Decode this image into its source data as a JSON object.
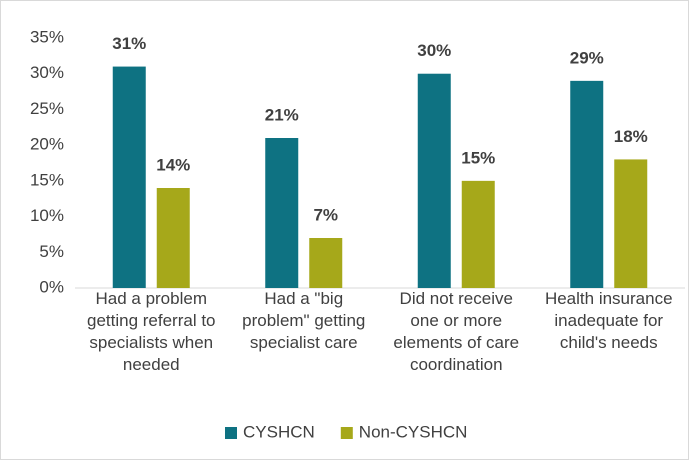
{
  "chart_data": {
    "type": "bar",
    "categories": [
      "Had a problem\ngetting referral to\nspecialists when\nneeded",
      "Had a \"big\nproblem\" getting\nspecialist care",
      "Did not receive\none or more\nelements of care\ncoordination",
      "Health insurance\ninadequate for\nchild's needs"
    ],
    "series": [
      {
        "name": "CYSHCN",
        "color": "#0e7282",
        "values": [
          31,
          21,
          30,
          29
        ],
        "value_labels": [
          "31%",
          "21%",
          "30%",
          "29%"
        ]
      },
      {
        "name": "Non-CYSHCN",
        "color": "#a6a81a",
        "values": [
          14,
          7,
          15,
          18
        ],
        "value_labels": [
          "14%",
          "7%",
          "15%",
          "18%"
        ]
      }
    ],
    "ylim": [
      0,
      35
    ],
    "yticks": [
      {
        "value": 0,
        "label": "0%"
      },
      {
        "value": 5,
        "label": "5%"
      },
      {
        "value": 10,
        "label": "10%"
      },
      {
        "value": 15,
        "label": "15%"
      },
      {
        "value": 20,
        "label": "20%"
      },
      {
        "value": 25,
        "label": "25%"
      },
      {
        "value": 30,
        "label": "30%"
      },
      {
        "value": 35,
        "label": "35%"
      }
    ],
    "grid": false,
    "legend": "bottom"
  }
}
